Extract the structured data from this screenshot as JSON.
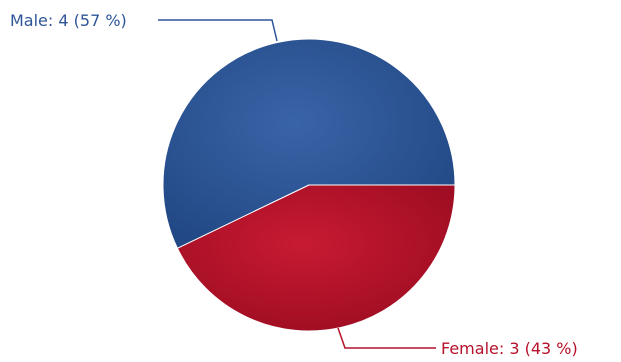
{
  "chart_data": {
    "type": "pie",
    "slices": [
      {
        "label": "Male",
        "value": 4,
        "percent": 57,
        "color": "#2D5597",
        "text": "Male: 4 (57 %)"
      },
      {
        "label": "Female",
        "value": 3,
        "percent": 43,
        "color": "#B5112A",
        "text": "Female: 3 (43 %)"
      }
    ],
    "title": "",
    "legend": "none"
  }
}
